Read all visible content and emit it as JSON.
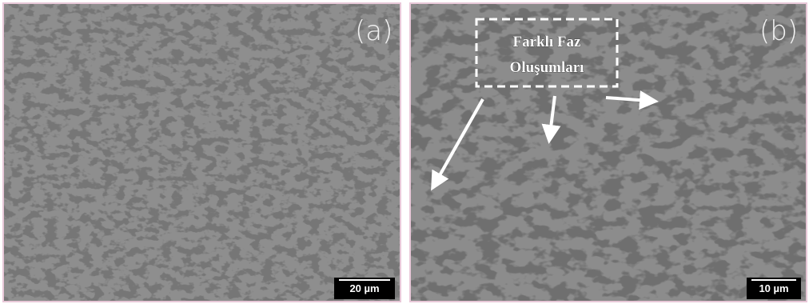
{
  "panels": [
    {
      "label": "(a)",
      "scale_bar": "20 µm"
    },
    {
      "label": "(b)",
      "scale_bar": "10 µm",
      "annotation": [
        "Farklı Faz",
        "Oluşumları"
      ]
    }
  ]
}
